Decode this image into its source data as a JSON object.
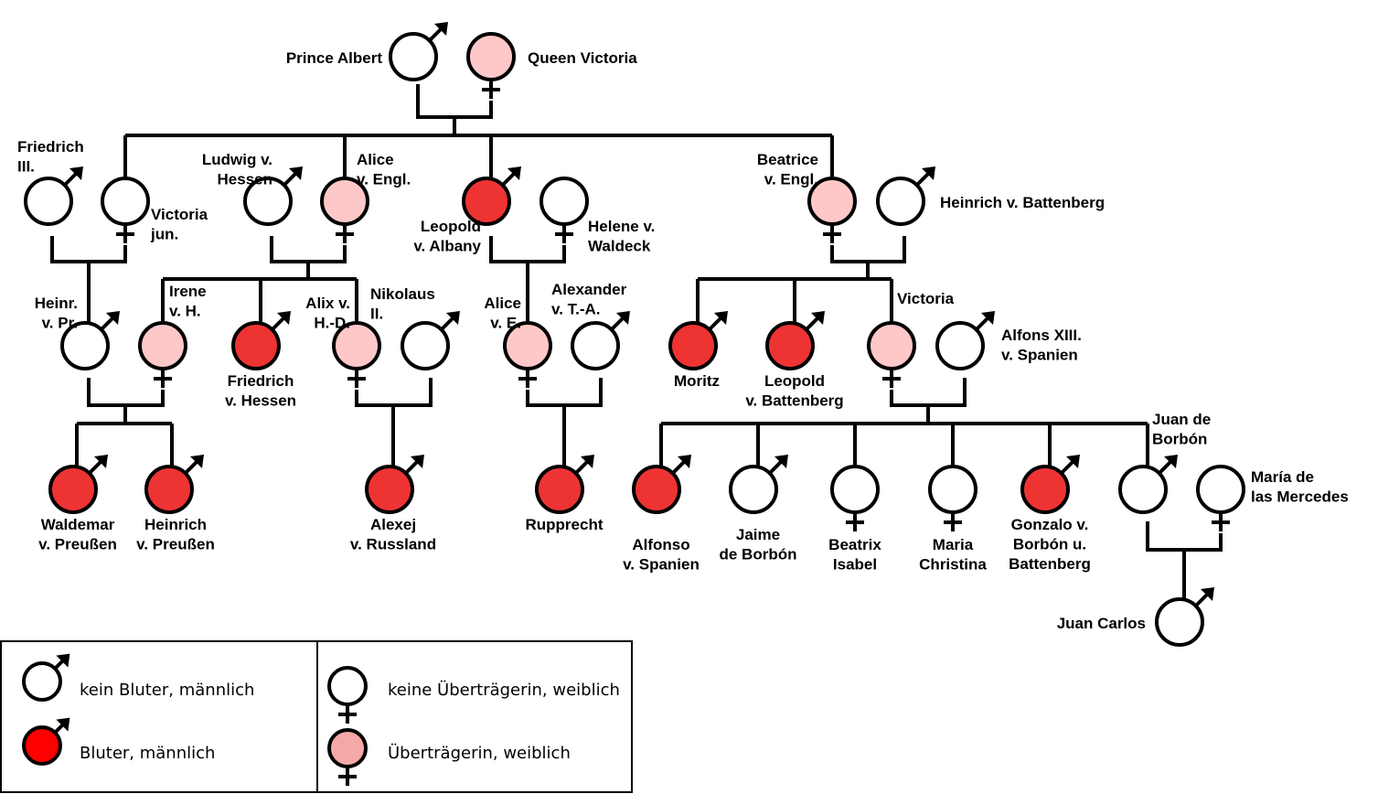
{
  "colors": {
    "none": "#ffffff",
    "hemophiliac": "#ee3333",
    "carrier": "#ffc8c8",
    "line": "#000000",
    "legend_hemophiliac": "#ff0000",
    "legend_carrier": "#f5a8a8"
  },
  "people": [
    {
      "id": "albert",
      "sex": "male",
      "status": "none",
      "label": [
        "Prince Albert"
      ]
    },
    {
      "id": "victoria",
      "sex": "female",
      "status": "carrier",
      "label": [
        "Queen Victoria"
      ]
    },
    {
      "id": "friedrich3",
      "sex": "male",
      "status": "none",
      "label": [
        "Friedrich",
        "III."
      ]
    },
    {
      "id": "victoria_jun",
      "sex": "female",
      "status": "none",
      "label": [
        "Victoria",
        "jun."
      ]
    },
    {
      "id": "ludwig",
      "sex": "male",
      "status": "none",
      "label": [
        "Ludwig v.",
        "Hessen"
      ]
    },
    {
      "id": "alice",
      "sex": "female",
      "status": "carrier",
      "label": [
        "Alice",
        "v. Engl."
      ]
    },
    {
      "id": "leopold",
      "sex": "male",
      "status": "hemophiliac",
      "label": [
        "Leopold",
        "v. Albany"
      ]
    },
    {
      "id": "helene",
      "sex": "female",
      "status": "none",
      "label": [
        "Helene v.",
        "Waldeck"
      ]
    },
    {
      "id": "beatrice",
      "sex": "female",
      "status": "carrier",
      "label": [
        "Beatrice",
        "v. Engl."
      ]
    },
    {
      "id": "heinrich_batt",
      "sex": "male",
      "status": "none",
      "label": [
        "Heinrich v. Battenberg"
      ]
    },
    {
      "id": "heinr_pr",
      "sex": "male",
      "status": "none",
      "label": [
        "Heinr.",
        "v. Pr."
      ]
    },
    {
      "id": "irene",
      "sex": "female",
      "status": "carrier",
      "label": [
        "Irene",
        "v. H."
      ]
    },
    {
      "id": "friedrich_h",
      "sex": "male",
      "status": "hemophiliac",
      "label": [
        "Friedrich",
        "v. Hessen"
      ]
    },
    {
      "id": "alix",
      "sex": "female",
      "status": "carrier",
      "label": [
        "Alix v.",
        "H.-D."
      ]
    },
    {
      "id": "nikolaus",
      "sex": "male",
      "status": "none",
      "label": [
        "Nikolaus",
        "II."
      ]
    },
    {
      "id": "alice_e",
      "sex": "female",
      "status": "carrier",
      "label": [
        "Alice",
        "v. E."
      ]
    },
    {
      "id": "alexander",
      "sex": "male",
      "status": "none",
      "label": [
        "Alexander",
        "v. T.-A."
      ]
    },
    {
      "id": "moritz",
      "sex": "male",
      "status": "hemophiliac",
      "label": [
        "Moritz"
      ]
    },
    {
      "id": "leopold_b",
      "sex": "male",
      "status": "hemophiliac",
      "label": [
        "Leopold",
        "v. Battenberg"
      ]
    },
    {
      "id": "victoria_e",
      "sex": "female",
      "status": "carrier",
      "label": [
        "Victoria"
      ]
    },
    {
      "id": "alfons",
      "sex": "male",
      "status": "none",
      "label": [
        "Alfons XIII.",
        "v. Spanien"
      ]
    },
    {
      "id": "waldemar",
      "sex": "male",
      "status": "hemophiliac",
      "label": [
        "Waldemar",
        "v. Preußen"
      ]
    },
    {
      "id": "heinrich_p",
      "sex": "male",
      "status": "hemophiliac",
      "label": [
        "Heinrich",
        "v. Preußen"
      ]
    },
    {
      "id": "alexej",
      "sex": "male",
      "status": "hemophiliac",
      "label": [
        "Alexej",
        "v. Russland"
      ]
    },
    {
      "id": "rupprecht",
      "sex": "male",
      "status": "hemophiliac",
      "label": [
        "Rupprecht"
      ]
    },
    {
      "id": "alfonso",
      "sex": "male",
      "status": "hemophiliac",
      "label": [
        "Alfonso",
        "v. Spanien"
      ]
    },
    {
      "id": "jaime",
      "sex": "male",
      "status": "none",
      "label": [
        "Jaime",
        "de Borbón"
      ]
    },
    {
      "id": "beatrix",
      "sex": "female",
      "status": "none",
      "label": [
        "Beatrix",
        "Isabel"
      ]
    },
    {
      "id": "maria",
      "sex": "female",
      "status": "none",
      "label": [
        "Maria",
        "Christina"
      ]
    },
    {
      "id": "gonzalo",
      "sex": "male",
      "status": "hemophiliac",
      "label": [
        "Gonzalo v.",
        "Borbón u.",
        "Battenberg"
      ]
    },
    {
      "id": "juan",
      "sex": "male",
      "status": "none",
      "label": [
        "Juan de",
        "Borbón"
      ]
    },
    {
      "id": "mercedes",
      "sex": "female",
      "status": "none",
      "label": [
        "María de",
        "las Mercedes"
      ]
    },
    {
      "id": "juan_carlos",
      "sex": "male",
      "status": "none",
      "label": [
        "Juan Carlos"
      ]
    }
  ],
  "legend": [
    {
      "sex": "male",
      "status": "none",
      "text": "kein Bluter, männlich"
    },
    {
      "sex": "male",
      "status": "hemophiliac",
      "text": "Bluter, männlich"
    },
    {
      "sex": "female",
      "status": "none",
      "text": "keine Überträgerin, weiblich"
    },
    {
      "sex": "female",
      "status": "carrier",
      "text": "Überträgerin, weiblich"
    }
  ]
}
